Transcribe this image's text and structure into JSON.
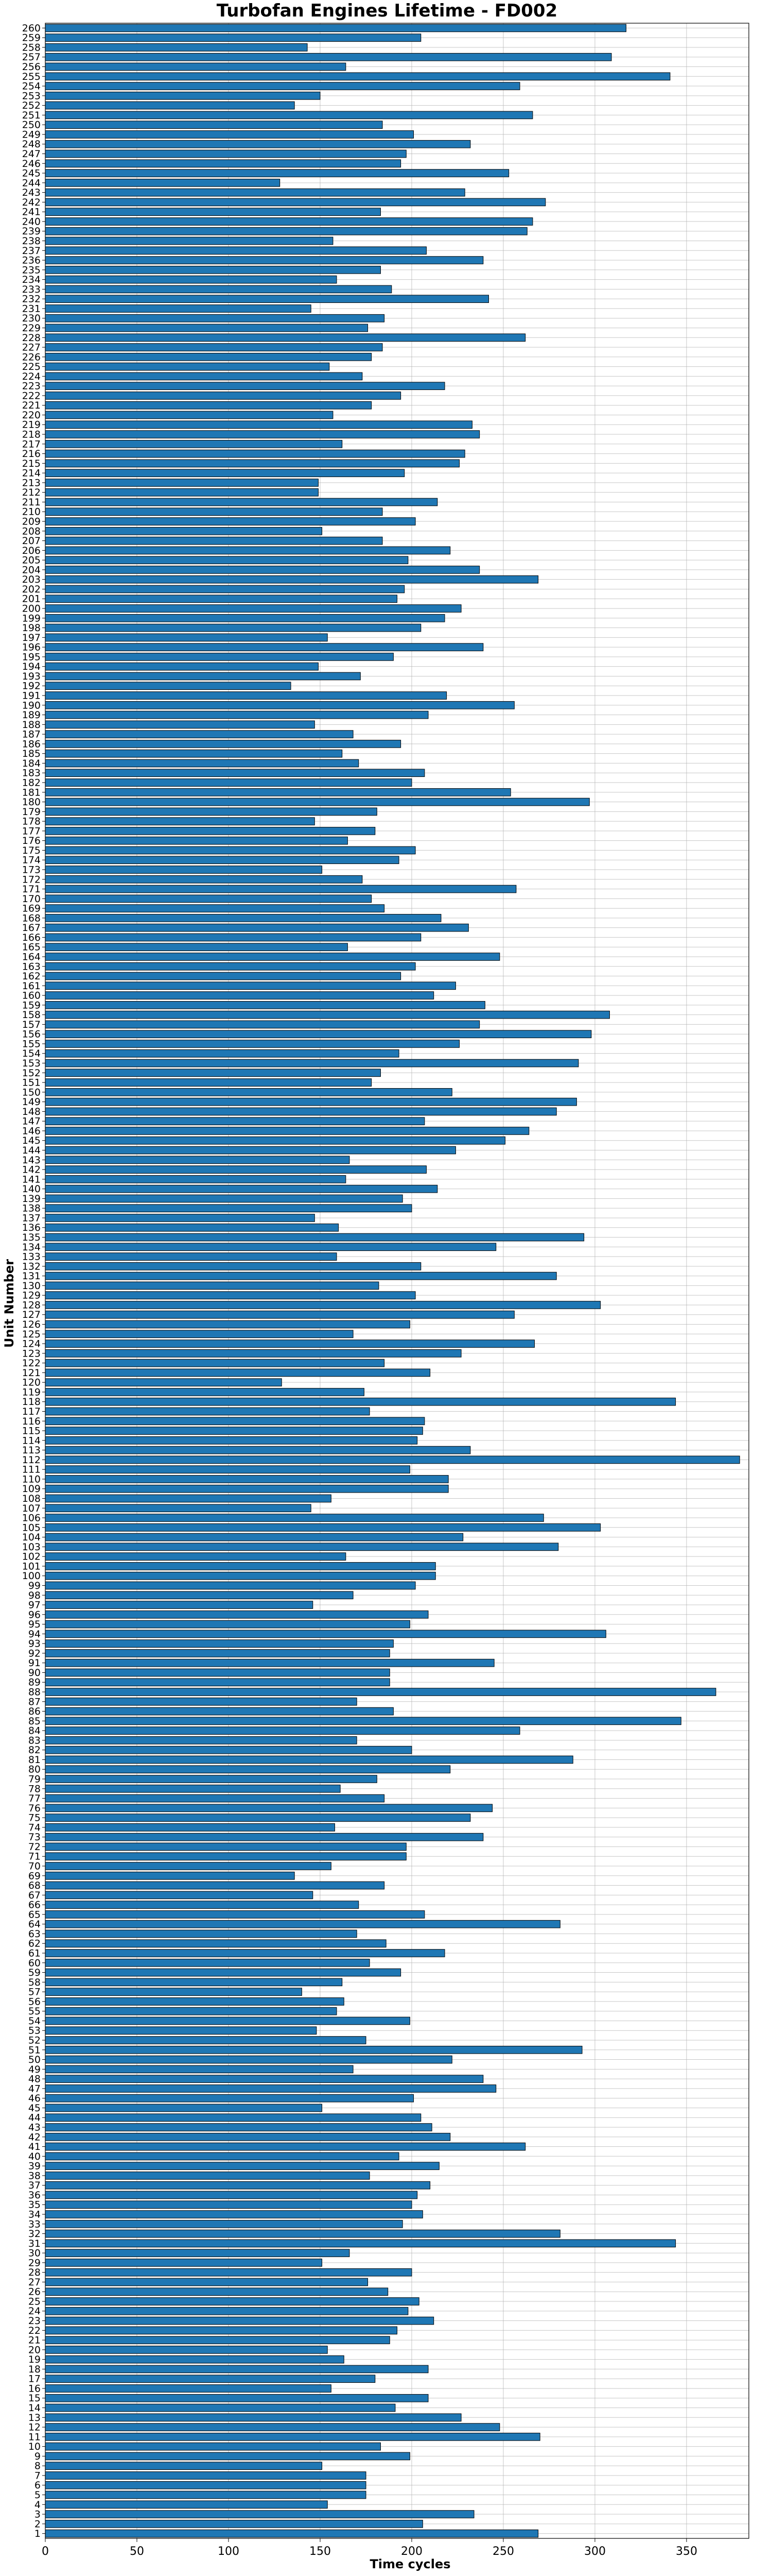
{
  "chart_data": {
    "type": "bar",
    "orientation": "horizontal",
    "title": "Turbofan Engines Lifetime - FD002",
    "xlabel": "Time cycles",
    "ylabel": "Unit Number",
    "xlim": [
      0,
      384
    ],
    "xticks": [
      0,
      50,
      100,
      150,
      200,
      250,
      300,
      350
    ],
    "grid": true,
    "bar_color": "#1f77b4",
    "categories": [
      "1",
      "2",
      "3",
      "4",
      "5",
      "6",
      "7",
      "8",
      "9",
      "10",
      "11",
      "12",
      "13",
      "14",
      "15",
      "16",
      "17",
      "18",
      "19",
      "20",
      "21",
      "22",
      "23",
      "24",
      "25",
      "26",
      "27",
      "28",
      "29",
      "30",
      "31",
      "32",
      "33",
      "34",
      "35",
      "36",
      "37",
      "38",
      "39",
      "40",
      "41",
      "42",
      "43",
      "44",
      "45",
      "46",
      "47",
      "48",
      "49",
      "50",
      "51",
      "52",
      "53",
      "54",
      "55",
      "56",
      "57",
      "58",
      "59",
      "60",
      "61",
      "62",
      "63",
      "64",
      "65",
      "66",
      "67",
      "68",
      "69",
      "70",
      "71",
      "72",
      "73",
      "74",
      "75",
      "76",
      "77",
      "78",
      "79",
      "80",
      "81",
      "82",
      "83",
      "84",
      "85",
      "86",
      "87",
      "88",
      "89",
      "90",
      "91",
      "92",
      "93",
      "94",
      "95",
      "96",
      "97",
      "98",
      "99",
      "100",
      "101",
      "102",
      "103",
      "104",
      "105",
      "106",
      "107",
      "108",
      "109",
      "110",
      "111",
      "112",
      "113",
      "114",
      "115",
      "116",
      "117",
      "118",
      "119",
      "120",
      "121",
      "122",
      "123",
      "124",
      "125",
      "126",
      "127",
      "128",
      "129",
      "130",
      "131",
      "132",
      "133",
      "134",
      "135",
      "136",
      "137",
      "138",
      "139",
      "140",
      "141",
      "142",
      "143",
      "144",
      "145",
      "146",
      "147",
      "148",
      "149",
      "150",
      "151",
      "152",
      "153",
      "154",
      "155",
      "156",
      "157",
      "158",
      "159",
      "160",
      "161",
      "162",
      "163",
      "164",
      "165",
      "166",
      "167",
      "168",
      "169",
      "170",
      "171",
      "172",
      "173",
      "174",
      "175",
      "176",
      "177",
      "178",
      "179",
      "180",
      "181",
      "182",
      "183",
      "184",
      "185",
      "186",
      "187",
      "188",
      "189",
      "190",
      "191",
      "192",
      "193",
      "194",
      "195",
      "196",
      "197",
      "198",
      "199",
      "200",
      "201",
      "202",
      "203",
      "204",
      "205",
      "206",
      "207",
      "208",
      "209",
      "210",
      "211",
      "212",
      "213",
      "214",
      "215",
      "216",
      "217",
      "218",
      "219",
      "220",
      "221",
      "222",
      "223",
      "224",
      "225",
      "226",
      "227",
      "228",
      "229",
      "230",
      "231",
      "232",
      "233",
      "234",
      "235",
      "236",
      "237",
      "238",
      "239",
      "240",
      "241",
      "242",
      "243",
      "244",
      "245",
      "246",
      "247",
      "248",
      "249",
      "250",
      "251",
      "252",
      "253",
      "254",
      "255",
      "256",
      "257",
      "258",
      "259",
      "260"
    ],
    "values": [
      269,
      206,
      234,
      154,
      175,
      175,
      175,
      151,
      199,
      183,
      270,
      248,
      227,
      191,
      209,
      156,
      180,
      209,
      163,
      154,
      188,
      192,
      212,
      198,
      204,
      187,
      176,
      200,
      151,
      166,
      344,
      281,
      195,
      206,
      200,
      203,
      210,
      177,
      215,
      193,
      262,
      221,
      211,
      205,
      151,
      201,
      246,
      239,
      168,
      222,
      293,
      175,
      148,
      199,
      159,
      163,
      140,
      162,
      194,
      177,
      218,
      186,
      170,
      281,
      207,
      171,
      146,
      185,
      136,
      156,
      197,
      197,
      239,
      158,
      232,
      244,
      185,
      161,
      181,
      221,
      288,
      200,
      170,
      259,
      347,
      190,
      170,
      366,
      188,
      188,
      245,
      188,
      190,
      306,
      199,
      209,
      146,
      168,
      202,
      213,
      213,
      164,
      280,
      228,
      303,
      272,
      145,
      156,
      220,
      220,
      199,
      379,
      232,
      203,
      206,
      207,
      177,
      344,
      174,
      129,
      210,
      185,
      227,
      267,
      168,
      199,
      256,
      303,
      202,
      182,
      279,
      205,
      159,
      246,
      294,
      160,
      147,
      200,
      195,
      214,
      164,
      208,
      166,
      224,
      251,
      264,
      207,
      279,
      290,
      222,
      178,
      183,
      291,
      193,
      226,
      298,
      237,
      308,
      240,
      212,
      224,
      194,
      202,
      248,
      165,
      205,
      231,
      216,
      185,
      178,
      257,
      173,
      151,
      193,
      202,
      165,
      180,
      147,
      181,
      297,
      254,
      200,
      207,
      171,
      162,
      194,
      168,
      147,
      209,
      256,
      219,
      134,
      172,
      149,
      190,
      239,
      154,
      205,
      218,
      227,
      192,
      196,
      269,
      237,
      198,
      221,
      184,
      151,
      202,
      184,
      214,
      149,
      149,
      196,
      226,
      229,
      162,
      237,
      233,
      157,
      178,
      194,
      218,
      173,
      155,
      178,
      184,
      262,
      176,
      185,
      145,
      242,
      189,
      159,
      183,
      239,
      208,
      157,
      263,
      266,
      183,
      273,
      229,
      128,
      253,
      194,
      197,
      232,
      201,
      184,
      266,
      136,
      150,
      259,
      341,
      164,
      309,
      143,
      205,
      317
    ]
  }
}
